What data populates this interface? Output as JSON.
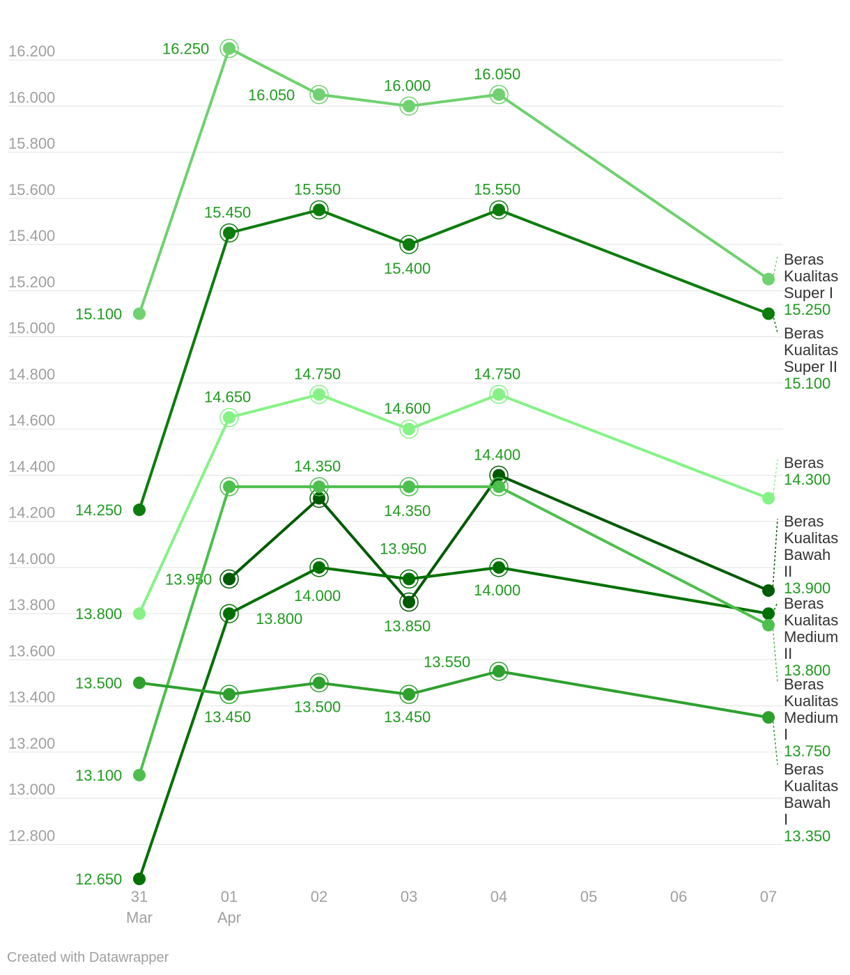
{
  "footer": "Created with Datawrapper",
  "chart_data": {
    "type": "line",
    "x": [
      "31 Mar",
      "01 Apr",
      "02",
      "03",
      "04",
      "05",
      "06",
      "07"
    ],
    "x_tick_labels": [
      {
        "day": "31",
        "month": "Mar"
      },
      {
        "day": "01",
        "month": "Apr"
      },
      {
        "day": "02",
        "month": ""
      },
      {
        "day": "03",
        "month": ""
      },
      {
        "day": "04",
        "month": ""
      },
      {
        "day": "05",
        "month": ""
      },
      {
        "day": "06",
        "month": ""
      },
      {
        "day": "07",
        "month": ""
      }
    ],
    "y_ticks": [
      "12.800",
      "13.000",
      "13.200",
      "13.400",
      "13.600",
      "13.800",
      "14.000",
      "14.200",
      "14.400",
      "14.600",
      "14.800",
      "15.000",
      "15.200",
      "15.400",
      "15.600",
      "15.800",
      "16.000",
      "16.200"
    ],
    "ylim": [
      12650,
      16250
    ],
    "grid": true,
    "legend": "direct labels at right end",
    "series": [
      {
        "name": "Beras Kualitas Super I",
        "name_lines": [
          "Beras",
          "Kualitas",
          "Super I"
        ],
        "color": "#6fd16f",
        "values": [
          15100,
          16250,
          16050,
          16000,
          16050,
          null,
          null,
          15250
        ],
        "end_label": "15.250",
        "labels": [
          "15.100",
          "16.250",
          "16.050",
          "16.000",
          "16.050",
          "",
          "",
          ""
        ]
      },
      {
        "name": "Beras Kualitas Super II",
        "name_lines": [
          "Beras",
          "Kualitas",
          "Super II"
        ],
        "color": "#0c7c0c",
        "values": [
          14250,
          15450,
          15550,
          15400,
          15550,
          null,
          null,
          15100
        ],
        "end_label": "15.100",
        "labels": [
          "14.250",
          "15.450",
          "15.550",
          "15.400",
          "15.550",
          "",
          "",
          ""
        ]
      },
      {
        "name": "Beras",
        "name_lines": [
          "Beras"
        ],
        "color": "#86f286",
        "values": [
          13800,
          14650,
          14750,
          14600,
          14750,
          null,
          null,
          14300
        ],
        "end_label": "14.300",
        "labels": [
          "13.800",
          "14.650",
          "14.750",
          "14.600",
          "14.750",
          "",
          "",
          ""
        ]
      },
      {
        "name": "Beras Kualitas Bawah II",
        "name_lines": [
          "Beras",
          "Kualitas",
          "Bawah",
          "II"
        ],
        "color": "#005a00",
        "values": [
          null,
          13950,
          14300,
          13850,
          14400,
          null,
          null,
          13900
        ],
        "end_label": "13.900",
        "labels": [
          "",
          "13.950",
          "",
          "13.850",
          "14.400",
          "",
          "",
          ""
        ]
      },
      {
        "name": "Beras Kualitas Medium II",
        "name_lines": [
          "Beras",
          "Kualitas",
          "Medium",
          "II"
        ],
        "color": "#007000",
        "values": [
          12650,
          13800,
          14000,
          13950,
          14000,
          null,
          null,
          13800
        ],
        "end_label": "13.800",
        "labels": [
          "12.650",
          "13.800",
          "14.000",
          "13.950",
          "14.000",
          "",
          "",
          ""
        ]
      },
      {
        "name": "Beras Kualitas Medium I",
        "name_lines": [
          "Beras",
          "Kualitas",
          "Medium",
          "I"
        ],
        "color": "#4dbf4d",
        "values": [
          13100,
          14350,
          14350,
          14350,
          14350,
          null,
          null,
          13750
        ],
        "end_label": "13.750",
        "labels": [
          "13.100",
          "",
          "14.350",
          "14.350",
          "",
          "",
          "",
          ""
        ]
      },
      {
        "name": "Beras Kualitas Bawah I",
        "name_lines": [
          "Beras",
          "Kualitas",
          "Bawah",
          "I"
        ],
        "color": "#2ea02e",
        "values": [
          13500,
          13450,
          13500,
          13450,
          13550,
          null,
          null,
          13350
        ],
        "end_label": "13.350",
        "labels": [
          "13.500",
          "13.450",
          "13.500",
          "13.450",
          "13.550",
          "",
          "",
          ""
        ]
      }
    ]
  }
}
